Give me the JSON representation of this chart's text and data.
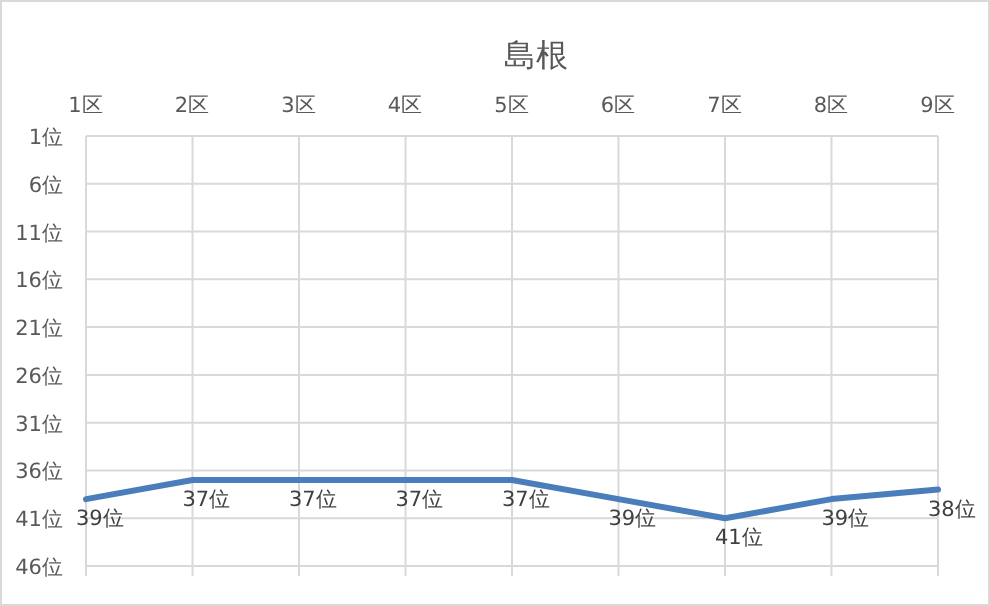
{
  "chart_data": {
    "type": "line",
    "title": "島根",
    "categories": [
      "1区",
      "2区",
      "3区",
      "4区",
      "5区",
      "6区",
      "7区",
      "8区",
      "9区"
    ],
    "series": [
      {
        "color": "#4a7ebb",
        "values": [
          39,
          37,
          37,
          37,
          37,
          39,
          41,
          39,
          38
        ],
        "value_labels": [
          "39位",
          "37位",
          "37位",
          "37位",
          "37位",
          "39位",
          "41位",
          "39位",
          "38位"
        ]
      }
    ],
    "ylim": [
      46,
      1
    ],
    "yticks": [
      {
        "value": 1,
        "label": "1位"
      },
      {
        "value": 6,
        "label": "6位"
      },
      {
        "value": 11,
        "label": "11位"
      },
      {
        "value": 16,
        "label": "16位"
      },
      {
        "value": 21,
        "label": "21位"
      },
      {
        "value": 26,
        "label": "26位"
      },
      {
        "value": 31,
        "label": "31位"
      },
      {
        "value": 36,
        "label": "36位"
      },
      {
        "value": 41,
        "label": "41位"
      },
      {
        "value": 46,
        "label": "46位"
      }
    ],
    "grid": true,
    "marker": "none",
    "line_style": "solid"
  }
}
